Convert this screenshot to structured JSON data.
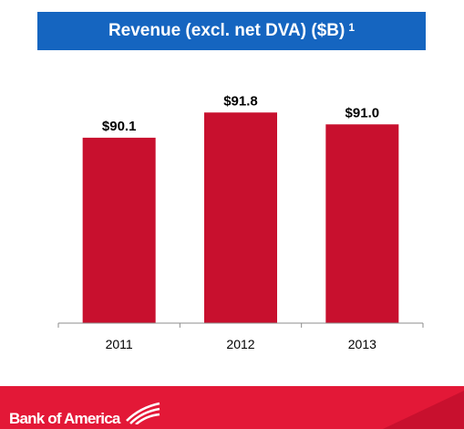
{
  "header": {
    "title": "Revenue (excl. net DVA) ($B)",
    "footnote_marker": "1"
  },
  "colors": {
    "title_bar": "#1565c0",
    "bar": "#c8102e",
    "footer": "#e31837",
    "footer_dark": "#c8102e",
    "axis": "#8c8c8c"
  },
  "chart_data": {
    "type": "bar",
    "title": "Revenue (excl. net DVA) ($B)",
    "categories": [
      "2011",
      "2012",
      "2013"
    ],
    "values": [
      90.1,
      91.8,
      91.0
    ],
    "data_labels": [
      "$90.1",
      "$91.8",
      "$91.0"
    ],
    "ylim": [
      77.6,
      93.6
    ],
    "grid": false,
    "legend": "none",
    "y_axis_visible": false
  },
  "footer": {
    "brand_name": "Bank of America",
    "logo_icon": "flagscape-icon"
  }
}
